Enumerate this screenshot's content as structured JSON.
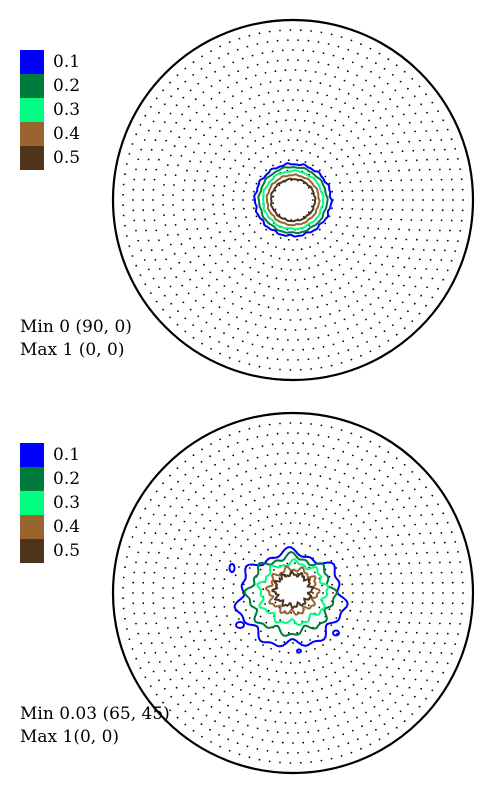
{
  "legend_colors": [
    "#0000ff",
    "#007a3d",
    "#00ff80",
    "#9a6430",
    "#4e341b"
  ],
  "figures": [
    {
      "legend": [
        {
          "label": "0.1",
          "color": "#0000ff"
        },
        {
          "label": "0.2",
          "color": "#007a3d"
        },
        {
          "label": "0.3",
          "color": "#00ff80"
        },
        {
          "label": "0.4",
          "color": "#9a6430"
        },
        {
          "label": "0.5",
          "color": "#4e341b"
        }
      ],
      "min_text": "Min 0 (90, 0)",
      "max_text": "Max 1 (0, 0)"
    },
    {
      "legend": [
        {
          "label": "0.1",
          "color": "#0000ff"
        },
        {
          "label": "0.2",
          "color": "#007a3d"
        },
        {
          "label": "0.3",
          "color": "#00ff80"
        },
        {
          "label": "0.4",
          "color": "#9a6430"
        },
        {
          "label": "0.5",
          "color": "#4e341b"
        }
      ],
      "min_text": "Min 0.03 (65, 45)",
      "max_text": "Max 1(0, 0)"
    }
  ]
}
